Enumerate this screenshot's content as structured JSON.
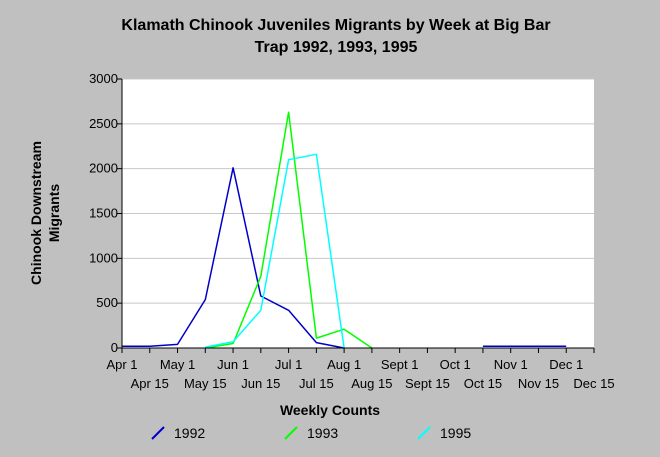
{
  "chart_data": {
    "type": "line",
    "title_lines": [
      "Klamath Chinook Juveniles Migrants by Week at Big Bar",
      "Trap 1992, 1993, 1995"
    ],
    "xlabel": "Weekly Counts",
    "ylabel_lines": [
      "Chinook Downstream",
      "Migrants"
    ],
    "ylim": [
      0,
      3000
    ],
    "y_ticks": [
      "0",
      "500",
      "1000",
      "1500",
      "2000",
      "2500",
      "3000"
    ],
    "x_ticks_upper": [
      "Apr 1",
      "May 1",
      "Jun 1",
      "Jul 1",
      "Aug 1",
      "Sept 1",
      "Oct 1",
      "Nov 1",
      "Dec 1"
    ],
    "x_ticks_lower": [
      "Apr 15",
      "May 15",
      "Jun 15",
      "Jul 15",
      "Aug 15",
      "Sept 15",
      "Oct 15",
      "Nov 15",
      "Dec 15"
    ],
    "x_range": [
      0,
      17
    ],
    "grid": true,
    "legend_position": "bottom",
    "series": [
      {
        "name": "1992",
        "color": "#0000c8",
        "points": [
          [
            0,
            20
          ],
          [
            1,
            20
          ],
          [
            2,
            40
          ],
          [
            3,
            540
          ],
          [
            4,
            2010
          ],
          [
            5,
            580
          ],
          [
            6,
            420
          ],
          [
            7,
            60
          ],
          [
            8,
            0
          ]
        ]
      },
      {
        "name": "1992",
        "color": "#0000c8",
        "points": [
          [
            13,
            20
          ],
          [
            14,
            20
          ],
          [
            15,
            20
          ],
          [
            16,
            20
          ]
        ]
      },
      {
        "name": "1993",
        "color": "#00ff00",
        "points": [
          [
            3,
            0
          ],
          [
            4,
            50
          ],
          [
            5,
            800
          ],
          [
            6,
            2630
          ],
          [
            7,
            110
          ],
          [
            8,
            210
          ],
          [
            9,
            0
          ]
        ]
      },
      {
        "name": "1995",
        "color": "#00ffff",
        "points": [
          [
            3,
            10
          ],
          [
            4,
            70
          ],
          [
            5,
            420
          ],
          [
            6,
            2100
          ],
          [
            7,
            2160
          ],
          [
            8,
            0
          ]
        ]
      }
    ],
    "legend": [
      {
        "label": "1992",
        "color": "#0000c8"
      },
      {
        "label": "1993",
        "color": "#00ff00"
      },
      {
        "label": "1995",
        "color": "#00ffff"
      }
    ]
  }
}
